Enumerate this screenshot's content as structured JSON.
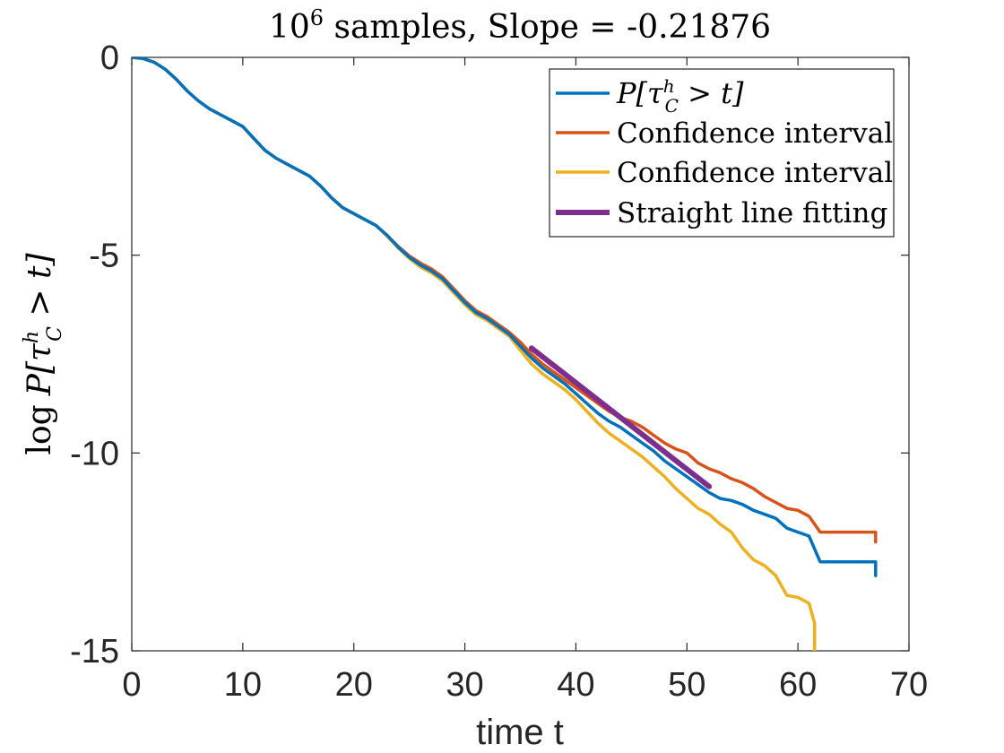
{
  "chart_data": {
    "type": "line",
    "title": {
      "base": "10",
      "exponent": "6",
      "rest": " samples, Slope = -0.21876"
    },
    "xlabel": "time t",
    "ylabel": {
      "prefix": "log",
      "p": "P[",
      "tau": "τ",
      "sup": "h",
      "sub": "C",
      "suffix": " > t]"
    },
    "xlim": [
      0,
      70
    ],
    "ylim": [
      -15,
      0
    ],
    "xticks": [
      0,
      10,
      20,
      30,
      40,
      50,
      60,
      70
    ],
    "xtick_labels": [
      "0",
      "10",
      "20",
      "30",
      "40",
      "50",
      "60",
      "70"
    ],
    "yticks": [
      0,
      -5,
      -10,
      -15
    ],
    "ytick_labels": [
      "0",
      "-5",
      "-10",
      "-15"
    ],
    "legend_position": "top-right",
    "series": [
      {
        "name": "P[τ^h_C > t]",
        "legend_label": {
          "p": "P[",
          "tau": "τ",
          "sup": "h",
          "sub": "C",
          "suffix": " > t]"
        },
        "color": "#0072BD",
        "line_width": "thin",
        "x": [
          0,
          1,
          2,
          3,
          4,
          5,
          6,
          7,
          8,
          9,
          10,
          11,
          12,
          13,
          14,
          15,
          16,
          17,
          18,
          19,
          20,
          21,
          22,
          23,
          24,
          25,
          26,
          27,
          28,
          29,
          30,
          31,
          32,
          33,
          34,
          35,
          36,
          37,
          38,
          39,
          40,
          41,
          42,
          43,
          44,
          45,
          46,
          47,
          48,
          49,
          50,
          51,
          52,
          53,
          54,
          55,
          56,
          57,
          58,
          59,
          60,
          61,
          62,
          63,
          64,
          65,
          66,
          67,
          67
        ],
        "y": [
          0,
          -0.03,
          -0.12,
          -0.3,
          -0.55,
          -0.85,
          -1.1,
          -1.3,
          -1.45,
          -1.6,
          -1.75,
          -2.05,
          -2.35,
          -2.55,
          -2.7,
          -2.85,
          -3.0,
          -3.25,
          -3.55,
          -3.8,
          -3.95,
          -4.1,
          -4.25,
          -4.5,
          -4.8,
          -5.05,
          -5.25,
          -5.4,
          -5.6,
          -5.9,
          -6.2,
          -6.45,
          -6.6,
          -6.8,
          -7.0,
          -7.3,
          -7.6,
          -7.85,
          -8.05,
          -8.25,
          -8.5,
          -8.75,
          -9.0,
          -9.2,
          -9.35,
          -9.55,
          -9.75,
          -9.95,
          -10.2,
          -10.4,
          -10.6,
          -10.8,
          -11.0,
          -11.15,
          -11.2,
          -11.3,
          -11.45,
          -11.55,
          -11.65,
          -11.9,
          -12.0,
          -12.1,
          -12.75,
          -12.75,
          -12.75,
          -12.75,
          -12.75,
          -12.75,
          -13.1
        ]
      },
      {
        "name": "Confidence interval",
        "legend_label": "Confidence interval",
        "color": "#D95319",
        "line_width": "thin",
        "x": [
          0,
          1,
          2,
          3,
          4,
          5,
          6,
          7,
          8,
          9,
          10,
          11,
          12,
          13,
          14,
          15,
          16,
          17,
          18,
          19,
          20,
          21,
          22,
          23,
          24,
          25,
          26,
          27,
          28,
          29,
          30,
          31,
          32,
          33,
          34,
          35,
          36,
          37,
          38,
          39,
          40,
          41,
          42,
          43,
          44,
          45,
          46,
          47,
          48,
          49,
          50,
          51,
          52,
          53,
          54,
          55,
          56,
          57,
          58,
          59,
          60,
          61,
          62,
          63,
          64,
          65,
          66,
          67,
          67
        ],
        "y": [
          0,
          -0.03,
          -0.12,
          -0.3,
          -0.55,
          -0.85,
          -1.1,
          -1.3,
          -1.45,
          -1.6,
          -1.75,
          -2.05,
          -2.35,
          -2.55,
          -2.7,
          -2.85,
          -3.0,
          -3.25,
          -3.55,
          -3.8,
          -3.95,
          -4.1,
          -4.25,
          -4.5,
          -4.78,
          -5.02,
          -5.2,
          -5.35,
          -5.55,
          -5.85,
          -6.15,
          -6.4,
          -6.55,
          -6.75,
          -6.95,
          -7.2,
          -7.5,
          -7.75,
          -7.95,
          -8.15,
          -8.35,
          -8.55,
          -8.75,
          -8.95,
          -9.1,
          -9.2,
          -9.35,
          -9.55,
          -9.75,
          -9.9,
          -10.0,
          -10.25,
          -10.4,
          -10.5,
          -10.65,
          -10.75,
          -10.9,
          -11.1,
          -11.25,
          -11.4,
          -11.45,
          -11.6,
          -12.0,
          -12.0,
          -12.0,
          -12.0,
          -12.0,
          -12.0,
          -12.25
        ]
      },
      {
        "name": "Confidence interval",
        "legend_label": "Confidence interval",
        "color": "#EDB120",
        "line_width": "thin",
        "x": [
          0,
          1,
          2,
          3,
          4,
          5,
          6,
          7,
          8,
          9,
          10,
          11,
          12,
          13,
          14,
          15,
          16,
          17,
          18,
          19,
          20,
          21,
          22,
          23,
          24,
          25,
          26,
          27,
          28,
          29,
          30,
          31,
          32,
          33,
          34,
          35,
          36,
          37,
          38,
          39,
          40,
          41,
          42,
          43,
          44,
          45,
          46,
          47,
          48,
          49,
          50,
          51,
          52,
          53,
          54,
          55,
          56,
          57,
          58,
          59,
          60,
          61,
          61.5,
          61.5
        ],
        "y": [
          0,
          -0.03,
          -0.12,
          -0.3,
          -0.55,
          -0.85,
          -1.1,
          -1.3,
          -1.45,
          -1.6,
          -1.75,
          -2.05,
          -2.35,
          -2.55,
          -2.7,
          -2.85,
          -3.0,
          -3.25,
          -3.55,
          -3.8,
          -3.95,
          -4.1,
          -4.25,
          -4.52,
          -4.82,
          -5.08,
          -5.3,
          -5.45,
          -5.65,
          -5.95,
          -6.25,
          -6.5,
          -6.65,
          -6.85,
          -7.05,
          -7.4,
          -7.75,
          -8.0,
          -8.2,
          -8.4,
          -8.65,
          -8.95,
          -9.25,
          -9.5,
          -9.7,
          -9.9,
          -10.1,
          -10.35,
          -10.6,
          -10.9,
          -11.15,
          -11.4,
          -11.55,
          -11.8,
          -12.0,
          -12.4,
          -12.7,
          -12.85,
          -13.1,
          -13.6,
          -13.65,
          -13.8,
          -14.3,
          -15.0
        ]
      },
      {
        "name": "Straight line fitting",
        "legend_label": "Straight line fitting",
        "color": "#7E2F8E",
        "line_width": "thick",
        "x": [
          36,
          52
        ],
        "y": [
          -7.35,
          -10.85
        ]
      }
    ]
  }
}
